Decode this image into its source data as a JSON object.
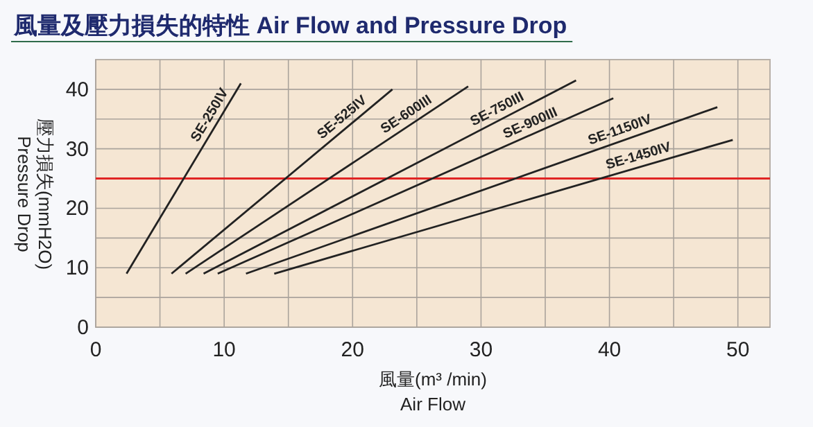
{
  "chart_data": {
    "type": "line",
    "title": "風量及壓力損失的特性 Air Flow and Pressure Drop",
    "xlabel": "風量(m³ /min)\nAir Flow",
    "ylabel": "壓力損失(mmH2O)\nPressure Drop",
    "xlim": [
      0,
      52.5
    ],
    "ylim": [
      0,
      45
    ],
    "xticks": [
      0,
      {
        "value": 5,
        "label": null
      },
      10,
      {
        "value": 15,
        "label": null
      },
      20,
      {
        "value": 25,
        "label": null
      },
      30,
      {
        "value": 35,
        "label": null
      },
      40,
      {
        "value": 45,
        "label": null
      },
      50
    ],
    "yticks": [
      0,
      {
        "value": 5,
        "label": null
      },
      10,
      {
        "value": 15,
        "label": null
      },
      20,
      {
        "value": 25,
        "label": null
      },
      30,
      {
        "value": 35,
        "label": null
      },
      40
    ],
    "grid": true,
    "legend": false,
    "marker": "none",
    "line_style": "solid",
    "ref_lines": [
      {
        "axis": "y",
        "value": 25,
        "color": "#e02424"
      }
    ],
    "series": [
      {
        "name": "SE-250IV",
        "color": "#222222",
        "x": [
          2.4,
          11.3
        ],
        "values": [
          9,
          41
        ]
      },
      {
        "name": "SE-525IV",
        "color": "#222222",
        "x": [
          5.9,
          23.1
        ],
        "values": [
          9,
          40
        ]
      },
      {
        "name": "SE-600III",
        "color": "#222222",
        "x": [
          7.0,
          29.0
        ],
        "values": [
          9,
          40.5
        ]
      },
      {
        "name": "SE-750III",
        "color": "#222222",
        "x": [
          8.4,
          37.4
        ],
        "values": [
          9,
          41.5
        ]
      },
      {
        "name": "SE-900III",
        "color": "#222222",
        "x": [
          9.5,
          40.3
        ],
        "values": [
          9,
          38.5
        ]
      },
      {
        "name": "SE-1150IV",
        "color": "#222222",
        "x": [
          11.7,
          48.4
        ],
        "values": [
          9,
          37
        ]
      },
      {
        "name": "SE-1450IV",
        "color": "#222222",
        "x": [
          13.9,
          49.6
        ],
        "values": [
          9,
          31.5
        ]
      }
    ]
  }
}
